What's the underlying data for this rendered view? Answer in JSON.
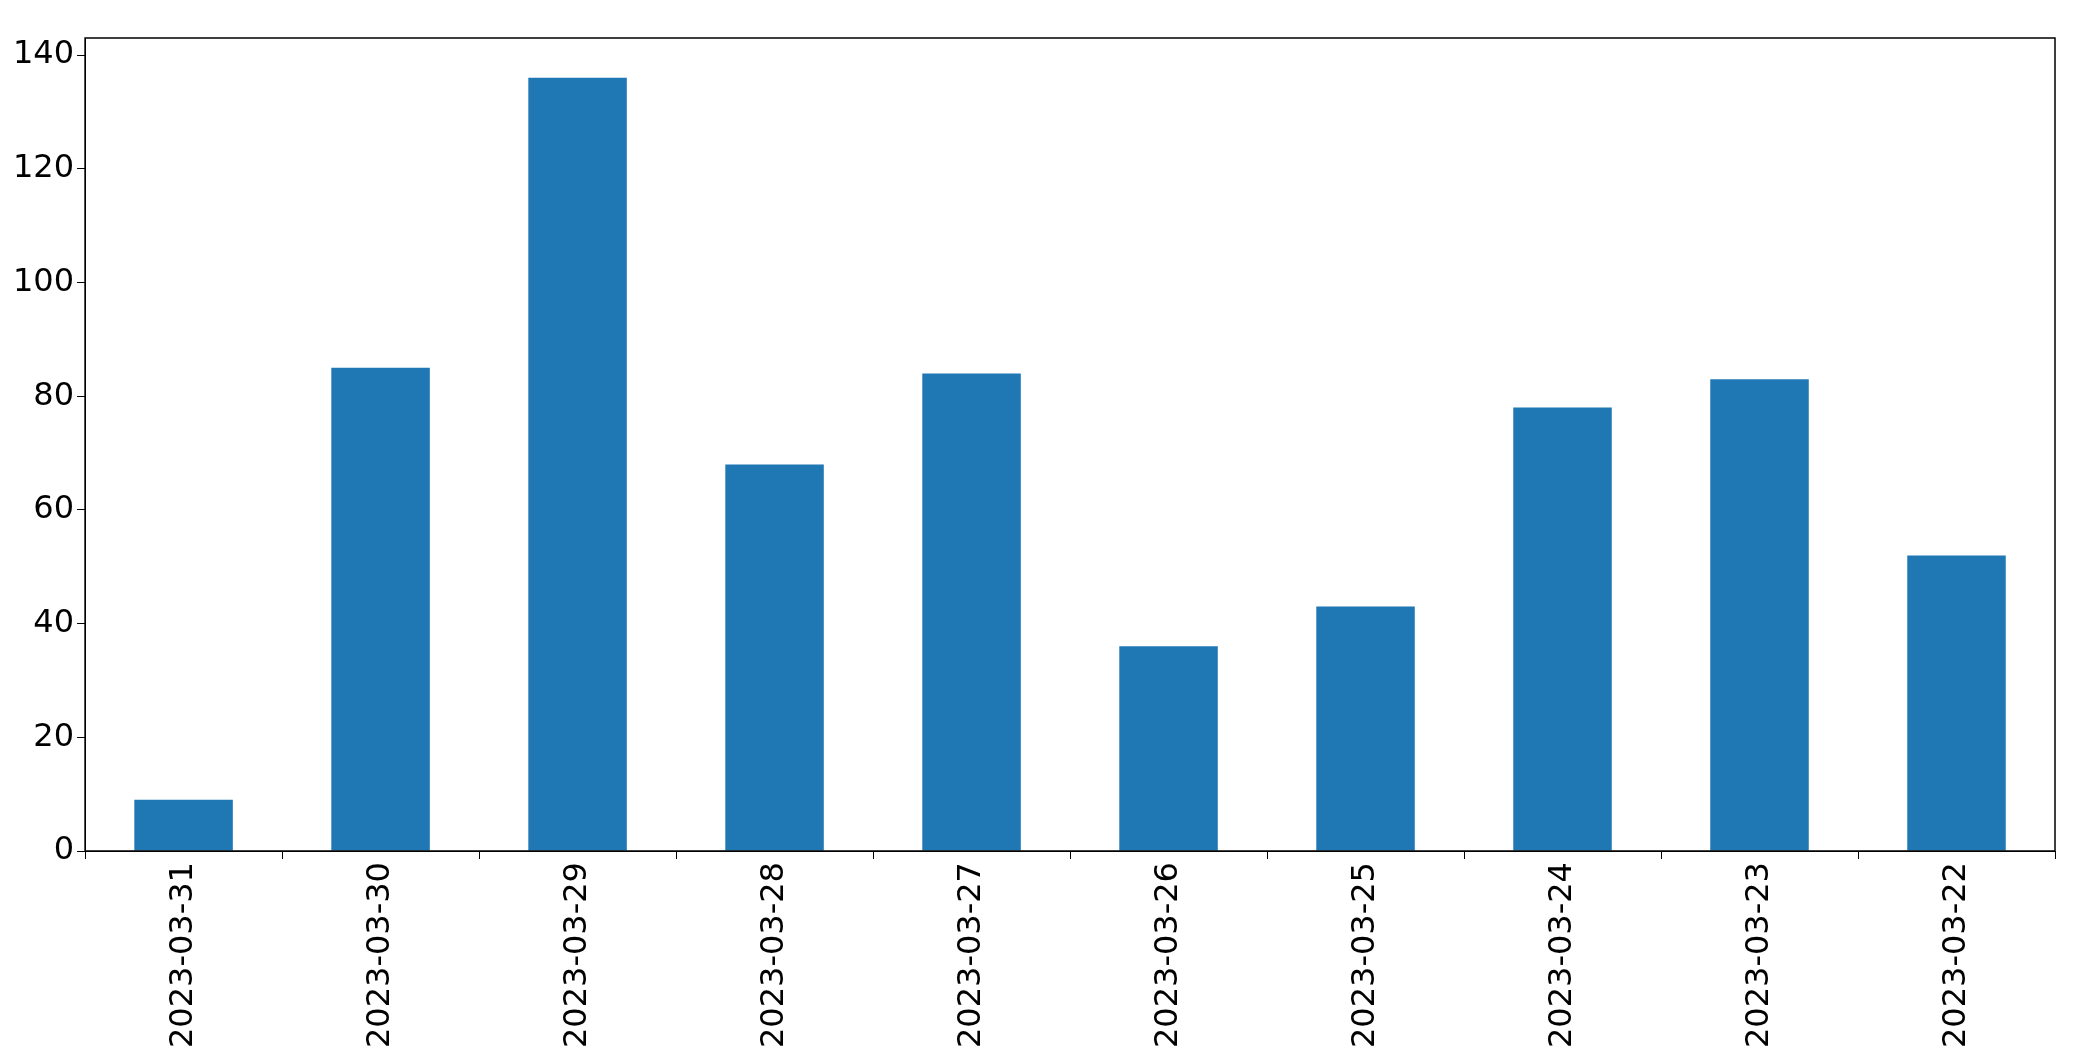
{
  "chart_data": {
    "type": "bar",
    "categories": [
      "2023-03-31",
      "2023-03-30",
      "2023-03-29",
      "2023-03-28",
      "2023-03-27",
      "2023-03-26",
      "2023-03-25",
      "2023-03-24",
      "2023-03-23",
      "2023-03-22"
    ],
    "values": [
      9,
      85,
      136,
      68,
      84,
      36,
      43,
      78,
      83,
      52
    ],
    "color": "#1f77b4",
    "ylim": [
      0,
      143
    ],
    "yticks": [
      0,
      20,
      40,
      60,
      80,
      100,
      120,
      140
    ],
    "grid": false,
    "legend": false
  }
}
